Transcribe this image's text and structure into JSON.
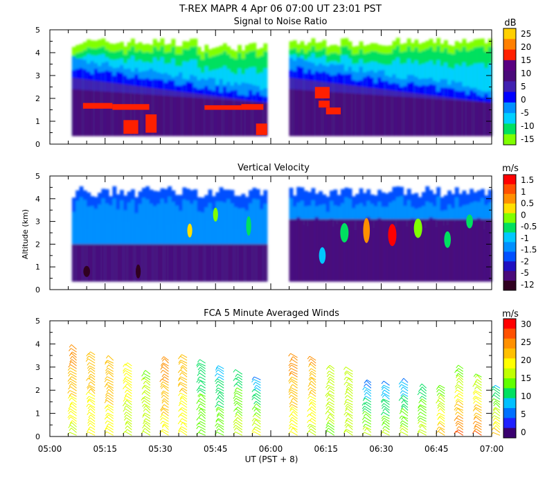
{
  "header": {
    "title": "T-REX   MAPR   4 Apr 06   07:00 UT   23:01   PST"
  },
  "x_axis": {
    "label": "UT  (PST + 8)",
    "ticks": [
      "05:00",
      "05:15",
      "05:30",
      "05:45",
      "06:00",
      "06:15",
      "06:30",
      "06:45",
      "07:00"
    ]
  },
  "y_axis": {
    "label": "Altitude (km)",
    "ticks": [
      "0",
      "1",
      "2",
      "3",
      "4",
      "5"
    ]
  },
  "colors": {
    "snr": [
      "#80ff00",
      "#00e060",
      "#00d0ff",
      "#0090ff",
      "#0000ff",
      "#4020b0",
      "#4a0a7a",
      "#5a0080",
      "#ff2000",
      "#ff8000",
      "#ffd000"
    ],
    "vel": [
      "#300020",
      "#4a0a7a",
      "#2010c0",
      "#0050ff",
      "#0090ff",
      "#00c8ff",
      "#00e060",
      "#80ff00",
      "#ffe000",
      "#ff9000",
      "#ff5000",
      "#ff0000"
    ],
    "wind": [
      "#3a0070",
      "#2020ff",
      "#0070ff",
      "#00c0ff",
      "#00e060",
      "#60ff00",
      "#c0ff00",
      "#ffff00",
      "#ffc000",
      "#ff9000",
      "#ff5000",
      "#ff0000"
    ]
  },
  "chart_data": [
    {
      "type": "heatmap",
      "title": "Signal to Noise Ratio",
      "xlabel": "UT  (PST + 8)",
      "ylabel": "",
      "xlim": [
        "05:00",
        "07:00"
      ],
      "ylim": [
        0,
        5
      ],
      "colorbar": {
        "unit": "dB",
        "ticks": [
          "25",
          "20",
          "15",
          "10",
          "5",
          "0",
          "-5",
          "-10",
          "-15"
        ],
        "range": [
          -17,
          30
        ]
      },
      "data_gaps": [
        [
          "05:00",
          "05:06"
        ],
        [
          "05:59",
          "06:05"
        ]
      ],
      "regions": [
        {
          "level": "-15 to -10",
          "description": "upper fringe near 4–4.5 km"
        },
        {
          "level": "5 to 15",
          "description": "purple core below 2.5 km"
        },
        {
          "level": "15 to 20",
          "description": "red patches near 1.5–2 km and below 1 km"
        }
      ]
    },
    {
      "type": "heatmap",
      "title": "Vertical Velocity",
      "xlabel": "UT  (PST + 8)",
      "ylabel": "Altitude (km)",
      "xlim": [
        "05:00",
        "07:00"
      ],
      "ylim": [
        0,
        5
      ],
      "colorbar": {
        "unit": "m/s",
        "ticks": [
          "1.5",
          "1",
          "0.5",
          "0",
          "-0.5",
          "-1",
          "-1.5",
          "-2",
          "-5",
          "-12"
        ]
      },
      "data_gaps": [
        [
          "05:00",
          "05:06"
        ],
        [
          "05:59",
          "06:05"
        ]
      ]
    },
    {
      "type": "scatter",
      "title": "FCA 5 Minute Averaged Winds",
      "xlabel": "UT  (PST + 8)",
      "ylabel": "",
      "xlim": [
        "05:00",
        "07:00"
      ],
      "ylim": [
        0,
        5
      ],
      "colorbar": {
        "unit": "m/s",
        "ticks": [
          "30",
          "25",
          "20",
          "15",
          "10",
          "5",
          "0"
        ]
      },
      "wind_barb_profiles": [
        {
          "time": "05:05",
          "top_km": 3.8,
          "speed_top": 24,
          "speed_low": 16
        },
        {
          "time": "05:10",
          "top_km": 3.6,
          "speed_top": 22,
          "speed_low": 17
        },
        {
          "time": "05:15",
          "top_km": 3.4,
          "speed_top": 22,
          "speed_low": 18
        },
        {
          "time": "05:20",
          "top_km": 3.1,
          "speed_top": 18,
          "speed_low": 16
        },
        {
          "time": "05:25",
          "top_km": 2.8,
          "speed_top": 14,
          "speed_low": 16
        },
        {
          "time": "05:30",
          "top_km": 3.3,
          "speed_top": 24,
          "speed_low": 18
        },
        {
          "time": "05:35",
          "top_km": 3.5,
          "speed_top": 22,
          "speed_low": 17
        },
        {
          "time": "05:40",
          "top_km": 3.2,
          "speed_top": 10,
          "speed_low": 14
        },
        {
          "time": "05:45",
          "top_km": 3.0,
          "speed_top": 8,
          "speed_low": 14
        },
        {
          "time": "05:50",
          "top_km": 2.8,
          "speed_top": 10,
          "speed_low": 16
        },
        {
          "time": "05:55",
          "top_km": 2.5,
          "speed_top": 6,
          "speed_low": 18
        },
        {
          "time": "06:05",
          "top_km": 3.5,
          "speed_top": 24,
          "speed_low": 17
        },
        {
          "time": "06:10",
          "top_km": 3.4,
          "speed_top": 23,
          "speed_low": 16
        },
        {
          "time": "06:15",
          "top_km": 3.0,
          "speed_top": 16,
          "speed_low": 14
        },
        {
          "time": "06:20",
          "top_km": 2.9,
          "speed_top": 16,
          "speed_low": 15
        },
        {
          "time": "06:25",
          "top_km": 2.4,
          "speed_top": 5,
          "speed_low": 16
        },
        {
          "time": "06:30",
          "top_km": 2.3,
          "speed_top": 6,
          "speed_low": 15
        },
        {
          "time": "06:35",
          "top_km": 2.4,
          "speed_top": 6,
          "speed_low": 16
        },
        {
          "time": "06:40",
          "top_km": 2.2,
          "speed_top": 10,
          "speed_low": 16
        },
        {
          "time": "06:45",
          "top_km": 2.1,
          "speed_top": 12,
          "speed_low": 22
        },
        {
          "time": "06:50",
          "top_km": 3.0,
          "speed_top": 12,
          "speed_low": 26
        },
        {
          "time": "06:55",
          "top_km": 2.6,
          "speed_top": 14,
          "speed_low": 25
        },
        {
          "time": "07:00",
          "top_km": 2.2,
          "speed_top": 8,
          "speed_low": 21
        }
      ]
    }
  ]
}
